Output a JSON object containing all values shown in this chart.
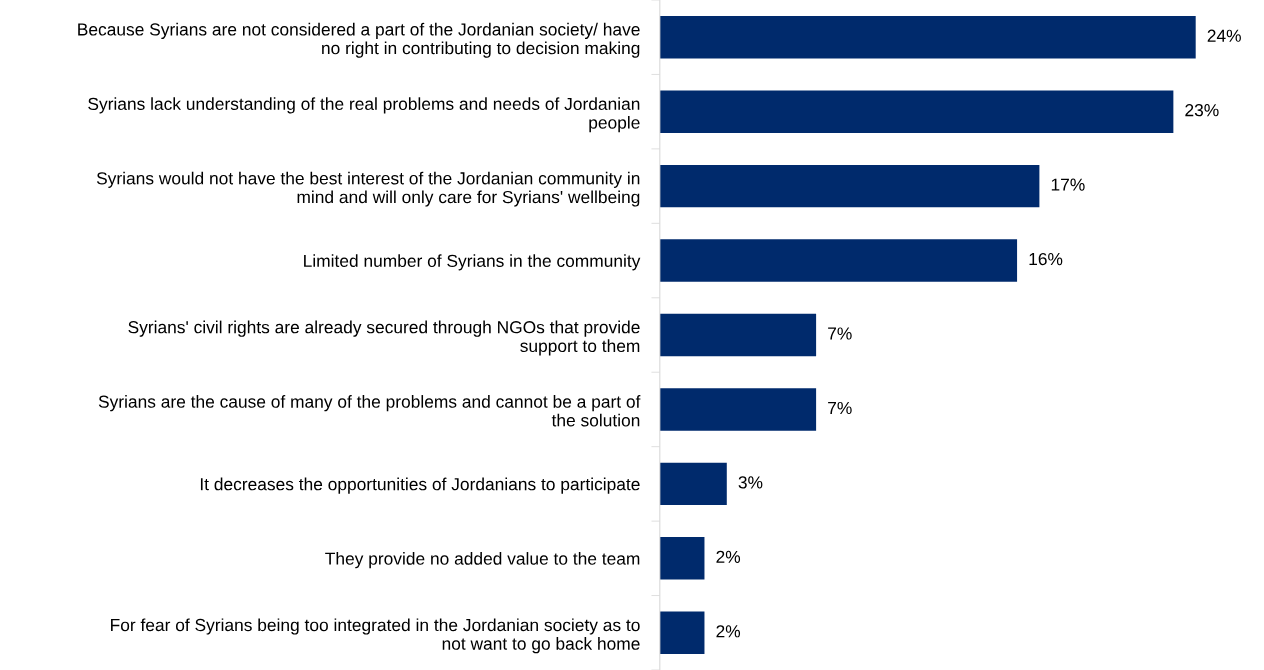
{
  "chart_data": {
    "type": "bar",
    "orientation": "horizontal",
    "categories": [
      "Because Syrians are not considered a part of the Jordanian society/ have\nno right in contributing to decision making",
      "Syrians lack understanding of the real problems and needs of Jordanian\npeople",
      "Syrians would not have the best interest of the Jordanian community in\nmind and will only care for Syrians' wellbeing",
      "Limited number of Syrians in the community",
      "Syrians' civil rights are already secured through NGOs that provide\nsupport to them",
      "Syrians are the cause of many of the problems and cannot be a part of\nthe solution",
      "It decreases the opportunities of Jordanians to participate",
      "They provide no added value to the team",
      "For fear of Syrians being too integrated in the Jordanian society as to\nnot want to go back home"
    ],
    "values": [
      24,
      23,
      17,
      16,
      7,
      7,
      3,
      2,
      2
    ],
    "value_labels": [
      "24%",
      "23%",
      "17%",
      "16%",
      "7%",
      "7%",
      "3%",
      "2%",
      "2%"
    ],
    "color": "#002a6c",
    "tick_labels": "y"
  }
}
